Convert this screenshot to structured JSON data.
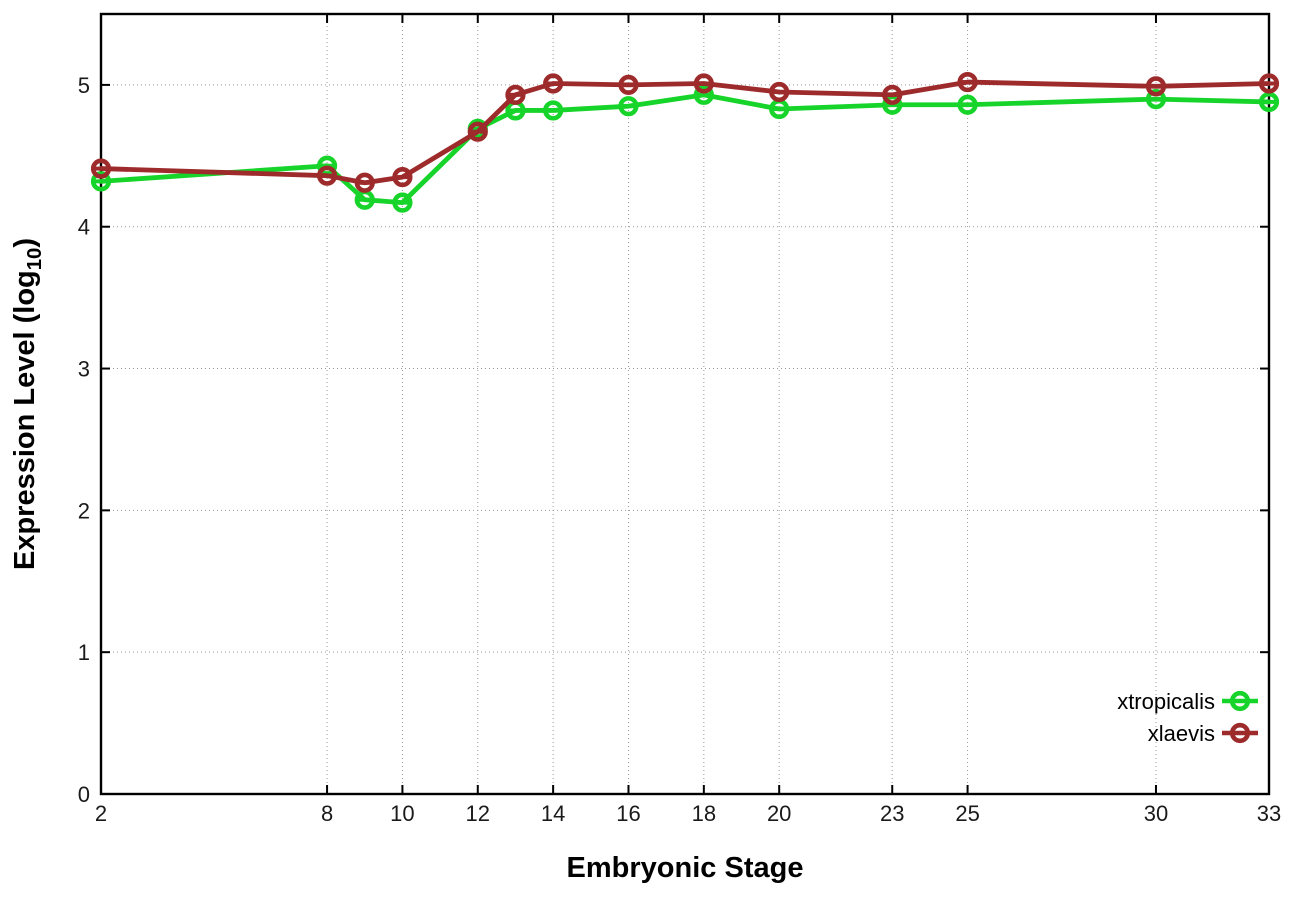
{
  "chart_data": {
    "type": "line",
    "title": "",
    "xlabel": "Embryonic Stage",
    "ylabel": "Expression Level (log10)",
    "ylabel_parts": {
      "prefix": "Expression Level (log",
      "sub": "10",
      "suffix": ")"
    },
    "x": [
      2,
      8,
      9,
      10,
      12,
      13,
      14,
      16,
      18,
      20,
      23,
      25,
      30,
      33
    ],
    "xticks": [
      2,
      8,
      10,
      12,
      14,
      16,
      18,
      20,
      23,
      25,
      30,
      33
    ],
    "yticks": [
      0,
      1,
      2,
      3,
      4,
      5
    ],
    "xlim": [
      2,
      33
    ],
    "ylim": [
      0,
      5.5
    ],
    "grid": true,
    "grid_style": "dotted",
    "legend_position": "inside-bottom-right",
    "marker": "open-circle-with-errorbar",
    "background": "#ffffff",
    "axis_color": "#000000",
    "grid_color": "#999999",
    "series": [
      {
        "name": "xtropicalis",
        "color": "#17d42a",
        "values": [
          4.32,
          4.43,
          4.19,
          4.17,
          4.69,
          4.82,
          4.82,
          4.85,
          4.93,
          4.83,
          4.86,
          4.86,
          4.9,
          4.88
        ]
      },
      {
        "name": "xlaevis",
        "color": "#9e2b2c",
        "values": [
          4.41,
          4.36,
          4.31,
          4.35,
          4.67,
          4.93,
          5.01,
          5.0,
          5.01,
          4.95,
          4.93,
          5.02,
          4.99,
          5.01
        ]
      }
    ]
  }
}
